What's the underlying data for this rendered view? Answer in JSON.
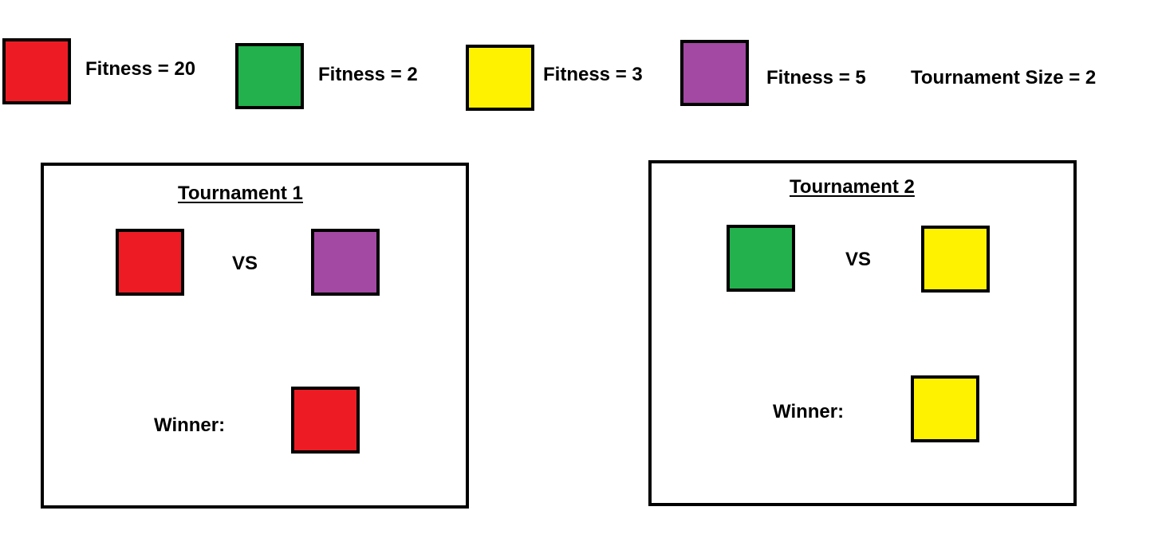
{
  "colors": {
    "red": "#ed1c24",
    "green": "#22b14c",
    "yellow": "#fff200",
    "purple": "#a349a4",
    "border": "#000000"
  },
  "legend": {
    "items": [
      {
        "color": "red",
        "label": "Fitness = 20"
      },
      {
        "color": "green",
        "label": "Fitness = 2"
      },
      {
        "color": "yellow",
        "label": "Fitness = 3"
      },
      {
        "color": "purple",
        "label": "Fitness = 5"
      }
    ],
    "tournament_size_label": "Tournament Size = 2"
  },
  "tournaments": [
    {
      "title": "Tournament 1",
      "vs_label": "VS",
      "competitors": [
        "red",
        "purple"
      ],
      "winner_label": "Winner:",
      "winner": "red"
    },
    {
      "title": "Tournament 2",
      "vs_label": "VS",
      "competitors": [
        "green",
        "yellow"
      ],
      "winner_label": "Winner:",
      "winner": "yellow"
    }
  ]
}
